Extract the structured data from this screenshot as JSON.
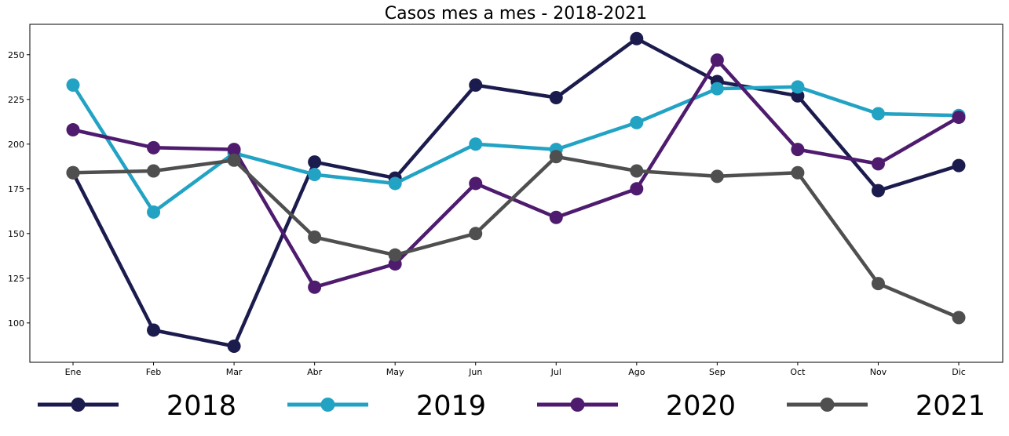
{
  "chart_data": {
    "type": "line",
    "title": "Casos mes a mes - 2018-2021",
    "xlabel": "",
    "ylabel": "",
    "categories": [
      "Ene",
      "Feb",
      "Mar",
      "Abr",
      "May",
      "Jun",
      "Jul",
      "Ago",
      "Sep",
      "Oct",
      "Nov",
      "Dic"
    ],
    "ylim": [
      78,
      267
    ],
    "yticks": [
      100,
      125,
      150,
      175,
      200,
      225,
      250
    ],
    "grid": false,
    "legend_position": "bottom",
    "series": [
      {
        "name": "2018",
        "color": "#1b1b4e",
        "values": [
          184,
          96,
          87,
          190,
          181,
          233,
          226,
          259,
          235,
          227,
          174,
          188
        ]
      },
      {
        "name": "2019",
        "color": "#22a3c4",
        "values": [
          233,
          162,
          195,
          183,
          178,
          200,
          197,
          212,
          231,
          232,
          217,
          216
        ]
      },
      {
        "name": "2020",
        "color": "#4e1b6e",
        "values": [
          208,
          198,
          197,
          120,
          133,
          178,
          159,
          175,
          247,
          197,
          189,
          215
        ]
      },
      {
        "name": "2021",
        "color": "#4f4f4f",
        "values": [
          184,
          185,
          191,
          148,
          138,
          150,
          193,
          185,
          182,
          184,
          122,
          103
        ]
      }
    ]
  }
}
